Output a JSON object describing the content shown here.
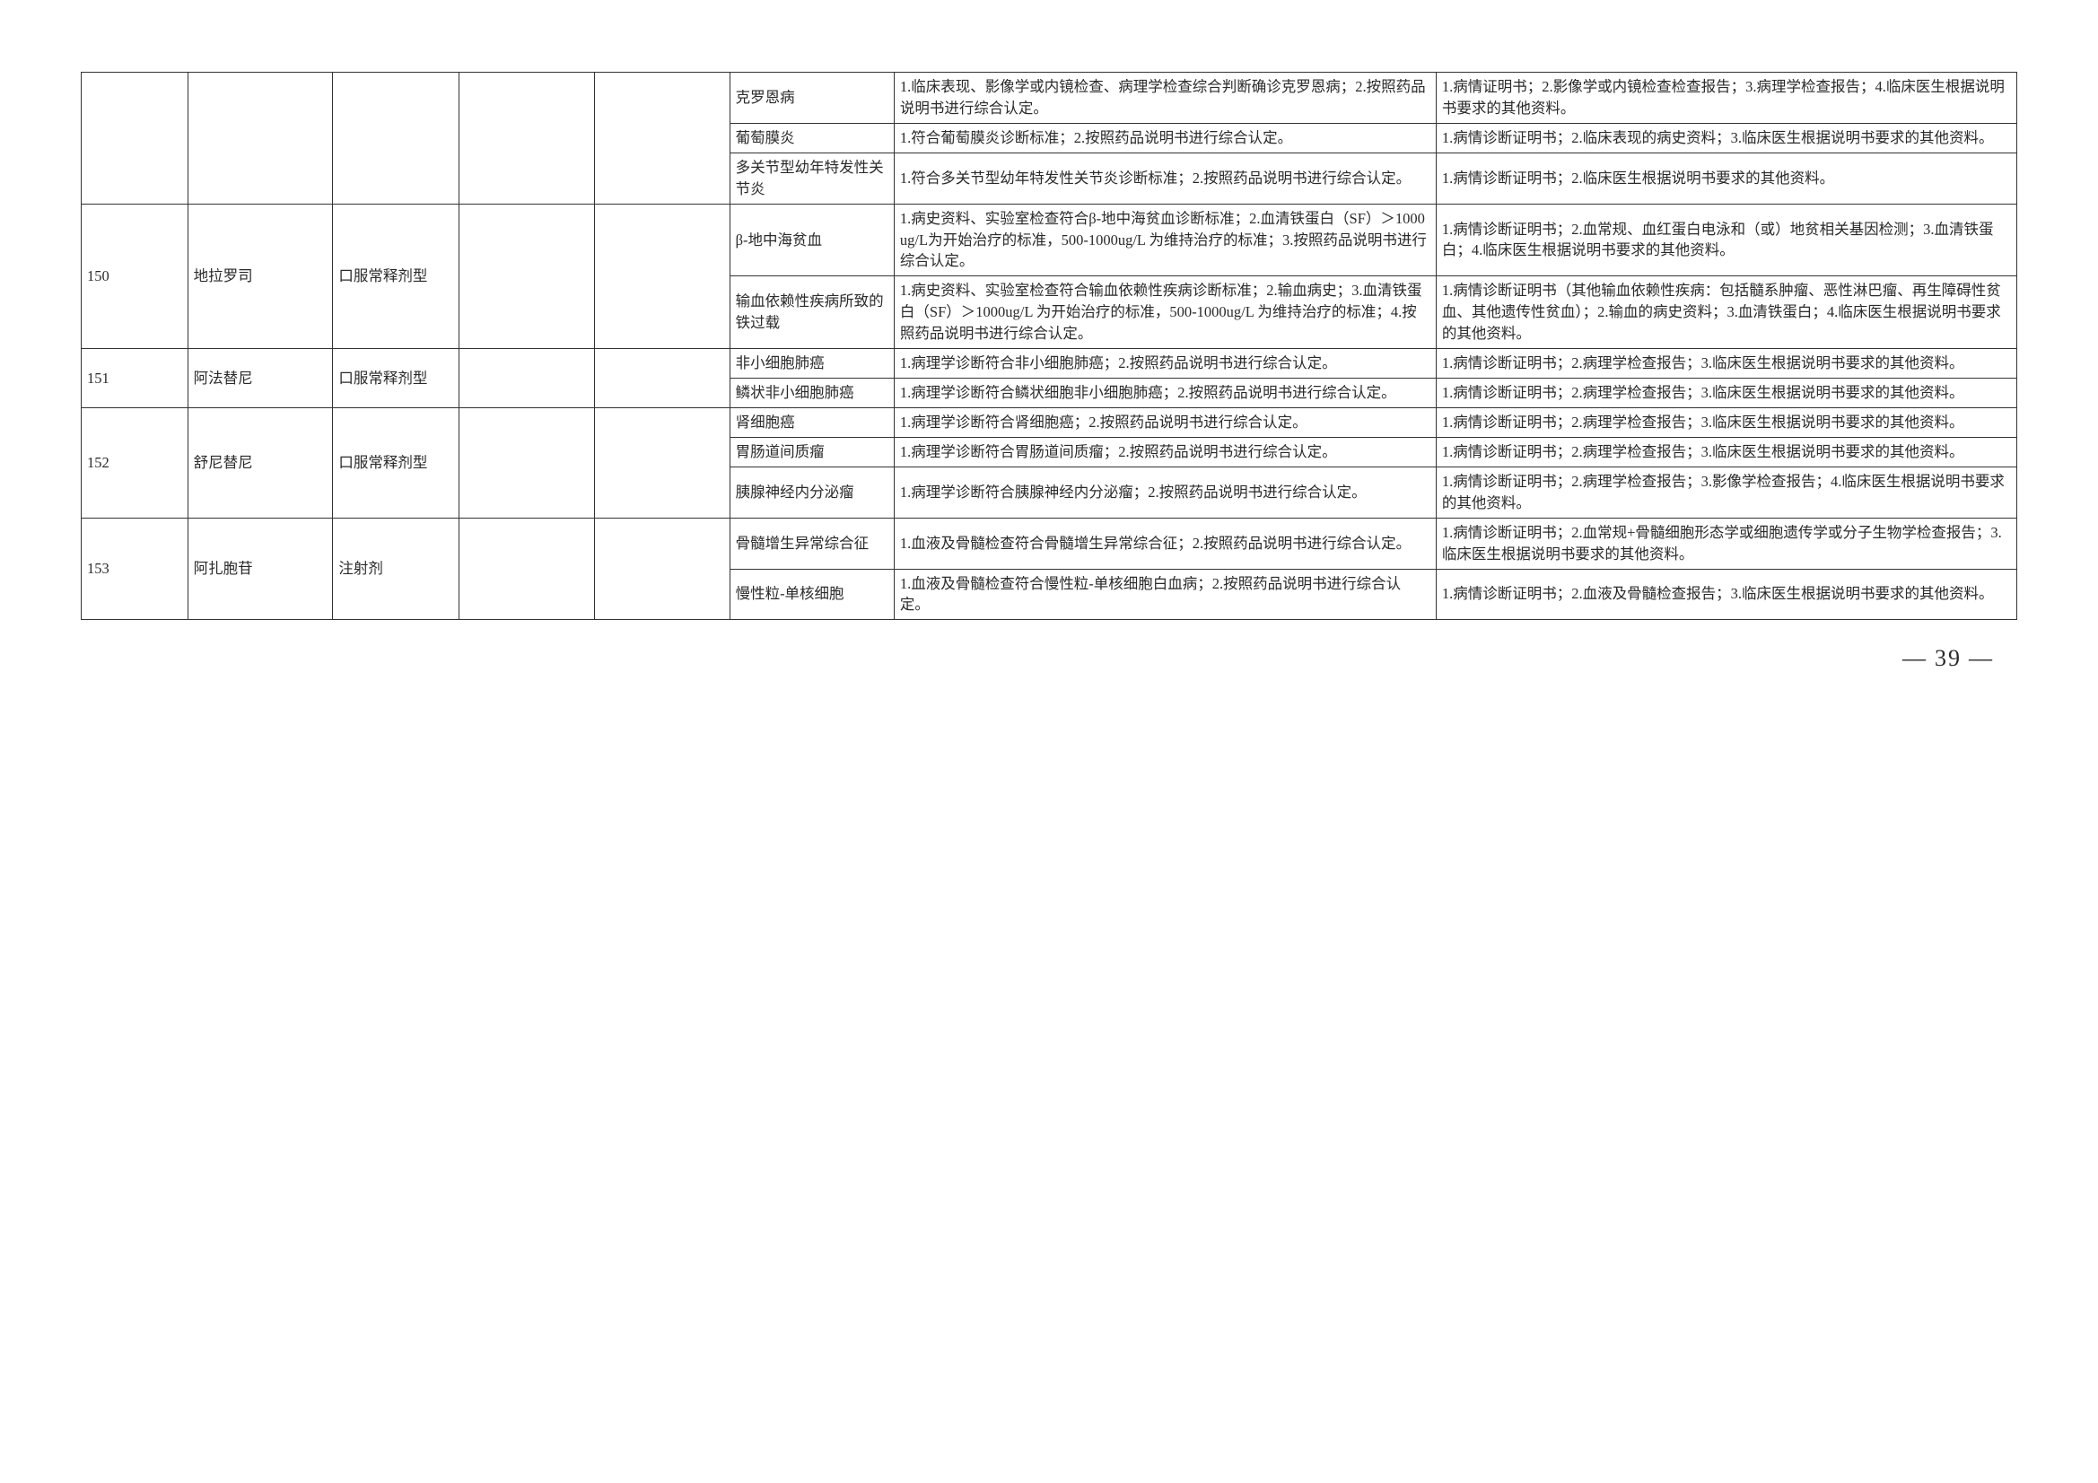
{
  "page_number": "39",
  "rows": [
    {
      "num": "",
      "drug": "",
      "form": "",
      "b1": "",
      "b2": "",
      "indication": "克罗恩病",
      "criteria": "1.临床表现、影像学或内镜检查、病理学检查综合判断确诊克罗恩病；2.按照药品说明书进行综合认定。",
      "materials": "1.病情证明书；2.影像学或内镜检查检查报告；3.病理学检查报告；4.临床医生根据说明书要求的其他资料。"
    },
    {
      "indication": "葡萄膜炎",
      "criteria": "1.符合葡萄膜炎诊断标准；2.按照药品说明书进行综合认定。",
      "materials": "1.病情诊断证明书；2.临床表现的病史资料；3.临床医生根据说明书要求的其他资料。"
    },
    {
      "indication": "多关节型幼年特发性关节炎",
      "criteria": "1.符合多关节型幼年特发性关节炎诊断标准；2.按照药品说明书进行综合认定。",
      "materials": "1.病情诊断证明书；2.临床医生根据说明书要求的其他资料。"
    },
    {
      "num": "150",
      "drug": "地拉罗司",
      "form": "口服常释剂型",
      "b1": "",
      "b2": "",
      "indication": "β-地中海贫血",
      "criteria": "1.病史资料、实验室检查符合β-地中海贫血诊断标准；2.血清铁蛋白（SF）＞1000ug/L为开始治疗的标准，500-1000ug/L 为维持治疗的标准；3.按照药品说明书进行综合认定。",
      "materials": "1.病情诊断证明书；2.血常规、血红蛋白电泳和（或）地贫相关基因检测；3.血清铁蛋白；4.临床医生根据说明书要求的其他资料。"
    },
    {
      "indication": "输血依赖性疾病所致的铁过载",
      "criteria": "1.病史资料、实验室检查符合输血依赖性疾病诊断标准；2.输血病史；3.血清铁蛋白（SF）＞1000ug/L 为开始治疗的标准，500-1000ug/L 为维持治疗的标准；4.按照药品说明书进行综合认定。",
      "materials": "1.病情诊断证明书（其他输血依赖性疾病：包括髓系肿瘤、恶性淋巴瘤、再生障碍性贫血、其他遗传性贫血）；2.输血的病史资料；3.血清铁蛋白；4.临床医生根据说明书要求的其他资料。"
    },
    {
      "num": "151",
      "drug": "阿法替尼",
      "form": "口服常释剂型",
      "b1": "",
      "b2": "",
      "indication": "非小细胞肺癌",
      "criteria": "1.病理学诊断符合非小细胞肺癌；2.按照药品说明书进行综合认定。",
      "materials": "1.病情诊断证明书；2.病理学检查报告；3.临床医生根据说明书要求的其他资料。"
    },
    {
      "indication": "鳞状非小细胞肺癌",
      "criteria": "1.病理学诊断符合鳞状细胞非小细胞肺癌；2.按照药品说明书进行综合认定。",
      "materials": "1.病情诊断证明书；2.病理学检查报告；3.临床医生根据说明书要求的其他资料。"
    },
    {
      "num": "152",
      "drug": "舒尼替尼",
      "form": "口服常释剂型",
      "b1": "",
      "b2": "",
      "indication": "肾细胞癌",
      "criteria": "1.病理学诊断符合肾细胞癌；2.按照药品说明书进行综合认定。",
      "materials": "1.病情诊断证明书；2.病理学检查报告；3.临床医生根据说明书要求的其他资料。"
    },
    {
      "indication": "胃肠道间质瘤",
      "criteria": "1.病理学诊断符合胃肠道间质瘤；2.按照药品说明书进行综合认定。",
      "materials": "1.病情诊断证明书；2.病理学检查报告；3.临床医生根据说明书要求的其他资料。"
    },
    {
      "indication": "胰腺神经内分泌瘤",
      "criteria": "1.病理学诊断符合胰腺神经内分泌瘤；2.按照药品说明书进行综合认定。",
      "materials": "1.病情诊断证明书；2.病理学检查报告；3.影像学检查报告；4.临床医生根据说明书要求的其他资料。"
    },
    {
      "num": "153",
      "drug": "阿扎胞苷",
      "form": "注射剂",
      "b1": "",
      "b2": "",
      "indication": "骨髓增生异常综合征",
      "criteria": "1.血液及骨髓检查符合骨髓增生异常综合征；2.按照药品说明书进行综合认定。",
      "materials": "1.病情诊断证明书；2.血常规+骨髓细胞形态学或细胞遗传学或分子生物学检查报告；3.临床医生根据说明书要求的其他资料。"
    },
    {
      "indication": "慢性粒-单核细胞",
      "criteria": "1.血液及骨髓检查符合慢性粒-单核细胞白血病；2.按照药品说明书进行综合认定。",
      "materials": "1.病情诊断证明书；2.血液及骨髓检查报告；3.临床医生根据说明书要求的其他资料。"
    }
  ]
}
